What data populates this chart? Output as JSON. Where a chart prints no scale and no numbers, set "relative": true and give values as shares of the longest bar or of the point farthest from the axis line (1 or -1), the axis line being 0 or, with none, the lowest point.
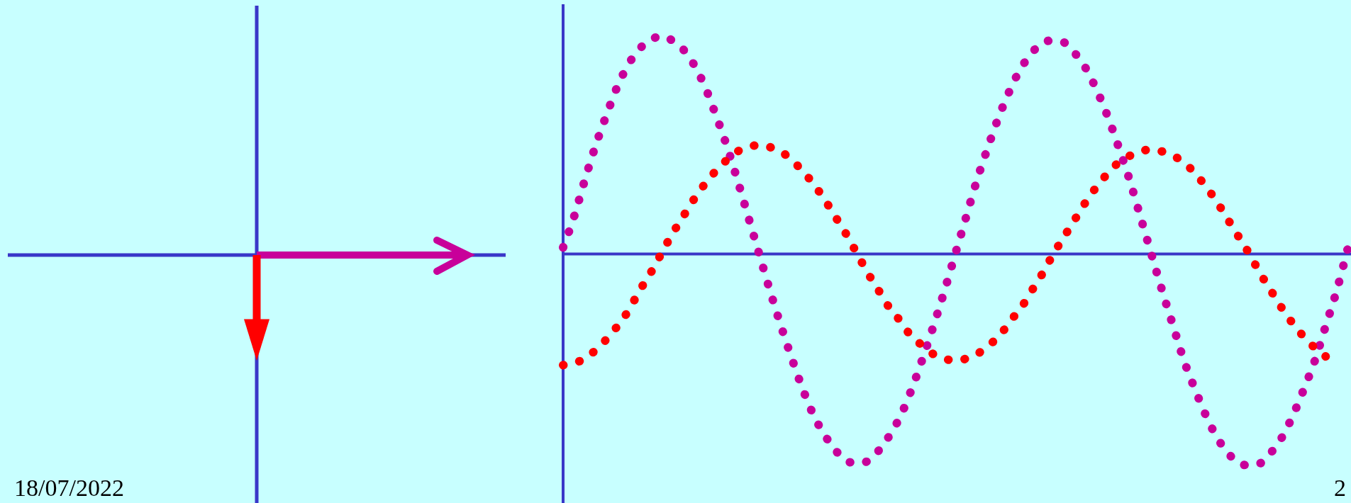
{
  "chart_data": {
    "type": "line",
    "relative": true,
    "line_style": "dotted",
    "categories": [
      null,
      null,
      null,
      null,
      null,
      null,
      null,
      null,
      null,
      null,
      null,
      null,
      null,
      null,
      null,
      null,
      null,
      null,
      null,
      null,
      null,
      null,
      null,
      null,
      null,
      null,
      null,
      null,
      null,
      null,
      null,
      null,
      null,
      null,
      null,
      null,
      null,
      null,
      null,
      null,
      null,
      null,
      null,
      null,
      null,
      null,
      null,
      null,
      null,
      null,
      null,
      null,
      null,
      null,
      null,
      null,
      null,
      null,
      null,
      null,
      null,
      null,
      null,
      null,
      null,
      null,
      null,
      null,
      null,
      null,
      null,
      null,
      null
    ],
    "series": [
      {
        "color": "#c8009a",
        "values": [
          0.03,
          0.17,
          0.34,
          0.5,
          0.64,
          0.77,
          0.87,
          0.94,
          0.98,
          1.0,
          0.98,
          0.94,
          0.87,
          0.77,
          0.64,
          0.5,
          0.34,
          0.17,
          0,
          -0.17,
          -0.33,
          -0.48,
          -0.62,
          -0.74,
          -0.83,
          -0.9,
          -0.95,
          -0.96,
          -0.95,
          -0.9,
          -0.83,
          -0.74,
          -0.62,
          -0.48,
          -0.33,
          -0.17,
          0,
          0.17,
          0.34,
          0.49,
          0.63,
          0.75,
          0.85,
          0.92,
          0.97,
          0.98,
          0.97,
          0.92,
          0.85,
          0.75,
          0.63,
          0.49,
          0.34,
          0.17,
          0,
          -0.17,
          -0.33,
          -0.49,
          -0.62,
          -0.74,
          -0.84,
          -0.91,
          -0.96,
          -0.97,
          -0.96,
          -0.91,
          -0.84,
          -0.74,
          -0.62,
          -0.49,
          -0.33,
          -0.17,
          0.02
        ]
      },
      {
        "color": "#ff0000",
        "values": [
          -0.51,
          -0.5,
          -0.48,
          -0.44,
          -0.39,
          -0.33,
          -0.26,
          -0.17,
          -0.09,
          0,
          0.09,
          0.17,
          0.25,
          0.32,
          0.38,
          0.43,
          0.47,
          0.49,
          0.5,
          0.49,
          0.47,
          0.43,
          0.38,
          0.32,
          0.25,
          0.17,
          0.09,
          0,
          -0.09,
          -0.17,
          -0.25,
          -0.31,
          -0.38,
          -0.42,
          -0.46,
          -0.48,
          -0.49,
          -0.48,
          -0.46,
          -0.42,
          -0.38,
          -0.31,
          -0.25,
          -0.17,
          -0.09,
          0,
          0.08,
          0.16,
          0.24,
          0.31,
          0.37,
          0.42,
          0.45,
          0.47,
          0.48,
          0.47,
          0.45,
          0.42,
          0.37,
          0.31,
          0.24,
          0.16,
          0.08,
          0,
          -0.09,
          -0.17,
          -0.25,
          -0.32,
          -0.38,
          -0.43,
          -0.47,
          null,
          null
        ]
      }
    ],
    "ref_lines": [
      {
        "axis": "y",
        "value": 0,
        "color": "#3a36c8"
      }
    ],
    "annotations": [
      "18/07/2022",
      "2"
    ]
  }
}
